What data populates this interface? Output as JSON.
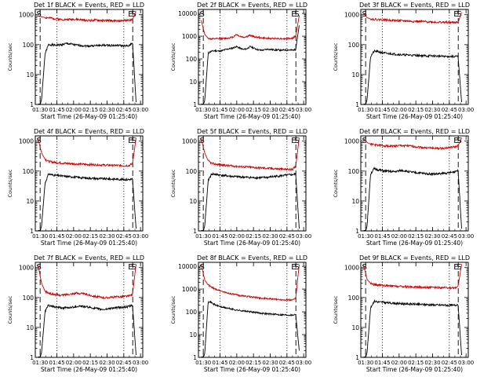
{
  "common": {
    "ylabel": "Counts/sec",
    "xlabel": "Start Time (26-May-09 01:25:40)",
    "x_ticks": [
      "01:30",
      "01:45",
      "02:00",
      "02:15",
      "02:30",
      "02:45",
      "03:00"
    ],
    "y_ticks": [
      "1",
      "10",
      "100",
      "1000"
    ],
    "y_ticks_ext": [
      "1",
      "10",
      "100",
      "1000",
      "10000"
    ],
    "marker_labels": {
      "start": "S",
      "end": "E"
    },
    "colors": {
      "events": "#000000",
      "lld": "#cc0000"
    }
  },
  "chart_data": [
    {
      "type": "line",
      "title": "Det 1f BLACK = Events, RED = LLD",
      "ylim": [
        1,
        1500
      ],
      "y_ticks_key": "y_ticks",
      "x_range": [
        "01:25:40",
        "03:02:00"
      ],
      "dashed_lines": [
        "01:30",
        "02:53"
      ],
      "dotted_lines": [
        "01:45",
        "02:45"
      ],
      "marker_times": {
        "start": "01:29",
        "end": "02:51",
        "end_s": "02:54"
      },
      "series": [
        {
          "key": "events",
          "values": [
            0.5,
            1.5,
            50,
            100,
            98,
            95,
            97,
            100,
            108,
            106,
            100,
            96,
            94,
            92,
            90,
            91,
            92,
            93,
            94,
            95,
            95,
            94,
            93,
            94,
            92,
            90,
            90,
            120,
            1.2
          ]
        },
        {
          "key": "lld",
          "values": [
            900,
            850,
            800,
            780,
            760,
            740,
            700,
            690,
            680,
            700,
            710,
            690,
            680,
            660,
            650,
            640,
            660,
            650,
            640,
            630,
            640,
            630,
            620,
            610,
            630,
            650,
            660,
            700,
            1300
          ]
        }
      ]
    },
    {
      "type": "line",
      "title": "Det 2f BLACK = Events, RED = LLD",
      "ylim": [
        1,
        15000
      ],
      "y_ticks_key": "y_ticks_ext",
      "x_range": [
        "01:25:40",
        "03:02:00"
      ],
      "dashed_lines": [
        "01:30",
        "02:53"
      ],
      "dotted_lines": [
        "01:45",
        "02:45"
      ],
      "marker_times": {
        "start": "01:29",
        "end": "02:51",
        "end_s": "02:54"
      },
      "series": [
        {
          "key": "events",
          "values": [
            0.5,
            1.5,
            180,
            220,
            230,
            220,
            230,
            260,
            280,
            300,
            350,
            300,
            260,
            280,
            350,
            300,
            260,
            240,
            250,
            270,
            260,
            250,
            250,
            240,
            250,
            250,
            240,
            260,
            3000
          ]
        },
        {
          "key": "lld",
          "values": [
            5000,
            1200,
            800,
            750,
            760,
            780,
            790,
            800,
            850,
            900,
            1200,
            1000,
            900,
            950,
            1100,
            950,
            900,
            850,
            820,
            800,
            780,
            800,
            790,
            780,
            770,
            790,
            800,
            1000,
            8000
          ]
        }
      ]
    },
    {
      "type": "line",
      "title": "Det 3f BLACK = Events, RED = LLD",
      "ylim": [
        1,
        1500
      ],
      "y_ticks_key": "y_ticks",
      "x_range": [
        "01:25:40",
        "03:02:00"
      ],
      "dashed_lines": [
        "01:30",
        "02:53"
      ],
      "dotted_lines": [
        "01:45",
        "02:45"
      ],
      "marker_times": {
        "start": "01:29",
        "end": "02:51",
        "end_s": "02:54"
      },
      "series": [
        {
          "key": "events",
          "values": [
            0.5,
            1.5,
            40,
            60,
            58,
            55,
            52,
            50,
            50,
            48,
            47,
            46,
            45,
            45,
            44,
            44,
            43,
            43,
            42,
            42,
            42,
            41,
            41,
            40,
            40,
            40,
            40,
            40,
            1.2
          ]
        },
        {
          "key": "lld",
          "values": [
            1100,
            800,
            720,
            700,
            690,
            680,
            670,
            660,
            650,
            640,
            630,
            620,
            620,
            610,
            600,
            600,
            590,
            590,
            580,
            580,
            570,
            560,
            560,
            560,
            550,
            550,
            550,
            560,
            1200
          ]
        }
      ]
    },
    {
      "type": "line",
      "title": "Det 4f BLACK = Events, RED = LLD",
      "ylim": [
        1,
        1500
      ],
      "y_ticks_key": "y_ticks",
      "x_range": [
        "01:25:40",
        "03:02:00"
      ],
      "dashed_lines": [
        "01:30",
        "02:53"
      ],
      "dotted_lines": [
        "01:45",
        "02:45"
      ],
      "marker_times": {
        "start": "01:29",
        "end": "02:51",
        "end_s": "02:54"
      },
      "series": [
        {
          "key": "events",
          "values": [
            0.5,
            1.5,
            40,
            80,
            75,
            72,
            70,
            68,
            66,
            65,
            64,
            62,
            60,
            60,
            58,
            58,
            57,
            56,
            56,
            55,
            55,
            54,
            54,
            53,
            53,
            52,
            52,
            55,
            1.2
          ]
        },
        {
          "key": "lld",
          "values": [
            1200,
            400,
            250,
            210,
            200,
            195,
            190,
            185,
            180,
            178,
            175,
            172,
            170,
            168,
            166,
            165,
            163,
            162,
            160,
            158,
            157,
            156,
            155,
            154,
            153,
            152,
            152,
            180,
            1300
          ]
        }
      ]
    },
    {
      "type": "line",
      "title": "Det 5f BLACK = Events, RED = LLD",
      "ylim": [
        1,
        1500
      ],
      "y_ticks_key": "y_ticks",
      "x_range": [
        "01:25:40",
        "03:02:00"
      ],
      "dashed_lines": [
        "01:30",
        "02:53"
      ],
      "dotted_lines": [
        "01:45",
        "02:45"
      ],
      "marker_times": {
        "start": "01:29",
        "end": "02:51",
        "end_s": "02:54"
      },
      "series": [
        {
          "key": "events",
          "values": [
            0.5,
            1.5,
            50,
            80,
            78,
            75,
            72,
            70,
            68,
            66,
            65,
            64,
            63,
            62,
            61,
            60,
            60,
            60,
            61,
            62,
            64,
            66,
            68,
            70,
            72,
            74,
            76,
            80,
            1.2
          ]
        },
        {
          "key": "lld",
          "values": [
            1200,
            400,
            220,
            180,
            170,
            165,
            160,
            155,
            150,
            148,
            145,
            142,
            140,
            138,
            135,
            132,
            130,
            128,
            126,
            124,
            122,
            120,
            118,
            116,
            115,
            114,
            113,
            140,
            1300
          ]
        }
      ]
    },
    {
      "type": "line",
      "title": "Det 6f BLACK = Events, RED = LLD",
      "ylim": [
        1,
        1500
      ],
      "y_ticks_key": "y_ticks",
      "x_range": [
        "01:25:40",
        "03:02:00"
      ],
      "dashed_lines": [
        "01:30",
        "02:53"
      ],
      "dotted_lines": [
        "01:45",
        "02:45"
      ],
      "marker_times": {
        "start": "01:29",
        "end": "02:51",
        "end_s": "02:54"
      },
      "series": [
        {
          "key": "events",
          "values": [
            0.5,
            1.5,
            80,
            120,
            110,
            105,
            100,
            98,
            96,
            95,
            100,
            105,
            100,
            95,
            90,
            88,
            86,
            84,
            82,
            80,
            80,
            80,
            82,
            84,
            86,
            90,
            95,
            110,
            1.2
          ]
        },
        {
          "key": "lld",
          "values": [
            1200,
            900,
            800,
            760,
            740,
            720,
            700,
            690,
            680,
            690,
            700,
            710,
            700,
            690,
            670,
            650,
            630,
            610,
            600,
            590,
            580,
            570,
            570,
            580,
            600,
            620,
            640,
            700,
            1300
          ]
        }
      ]
    },
    {
      "type": "line",
      "title": "Det 7f BLACK = Events, RED = LLD",
      "ylim": [
        1,
        1500
      ],
      "y_ticks_key": "y_ticks",
      "x_range": [
        "01:25:40",
        "03:02:00"
      ],
      "dashed_lines": [
        "01:30",
        "02:53"
      ],
      "dotted_lines": [
        "01:45",
        "02:45"
      ],
      "marker_times": {
        "start": "01:29",
        "end": "02:51",
        "end_s": "02:54"
      },
      "series": [
        {
          "key": "events",
          "values": [
            0.5,
            1.5,
            35,
            55,
            50,
            48,
            46,
            45,
            45,
            46,
            48,
            50,
            52,
            50,
            48,
            46,
            44,
            42,
            40,
            40,
            42,
            44,
            45,
            46,
            47,
            48,
            50,
            55,
            1.2
          ]
        },
        {
          "key": "lld",
          "values": [
            1200,
            300,
            160,
            140,
            130,
            125,
            120,
            120,
            125,
            130,
            135,
            140,
            138,
            132,
            125,
            118,
            112,
            106,
            100,
            98,
            100,
            102,
            104,
            106,
            108,
            110,
            112,
            130,
            1300
          ]
        }
      ]
    },
    {
      "type": "line",
      "title": "Det 8f BLACK = Events, RED = LLD",
      "ylim": [
        1,
        15000
      ],
      "y_ticks_key": "y_ticks_ext",
      "x_range": [
        "01:25:40",
        "03:02:00"
      ],
      "dashed_lines": [
        "01:30",
        "02:53"
      ],
      "dotted_lines": [
        "01:45",
        "02:45"
      ],
      "marker_times": {
        "start": "01:29",
        "end": "02:51",
        "end_s": "02:54"
      },
      "series": [
        {
          "key": "events",
          "values": [
            0.5,
            1.5,
            300,
            250,
            200,
            180,
            160,
            150,
            140,
            130,
            120,
            115,
            110,
            105,
            100,
            96,
            92,
            88,
            85,
            82,
            80,
            78,
            76,
            75,
            74,
            73,
            72,
            80,
            2.0
          ]
        },
        {
          "key": "lld",
          "values": [
            12000,
            2500,
            1500,
            1200,
            1000,
            900,
            800,
            700,
            650,
            600,
            560,
            520,
            500,
            480,
            460,
            440,
            420,
            400,
            390,
            380,
            370,
            360,
            350,
            345,
            340,
            335,
            330,
            400,
            12000
          ]
        }
      ]
    },
    {
      "type": "line",
      "title": "Det 9f BLACK = Events, RED = LLD",
      "ylim": [
        1,
        1500
      ],
      "y_ticks_key": "y_ticks",
      "x_range": [
        "01:25:40",
        "03:02:00"
      ],
      "dashed_lines": [
        "01:30",
        "02:53"
      ],
      "dotted_lines": [
        "01:45",
        "02:45"
      ],
      "marker_times": {
        "start": "01:29",
        "end": "02:51",
        "end_s": "02:54"
      },
      "series": [
        {
          "key": "events",
          "values": [
            0.5,
            1.5,
            45,
            75,
            72,
            70,
            68,
            66,
            65,
            64,
            63,
            62,
            62,
            61,
            60,
            60,
            59,
            58,
            58,
            57,
            57,
            56,
            56,
            56,
            55,
            55,
            55,
            60,
            1.2
          ]
        },
        {
          "key": "lld",
          "values": [
            1200,
            400,
            300,
            270,
            260,
            255,
            250,
            245,
            240,
            238,
            235,
            232,
            230,
            228,
            226,
            224,
            222,
            220,
            218,
            216,
            215,
            214,
            213,
            212,
            212,
            211,
            210,
            240,
            1300
          ]
        }
      ]
    }
  ]
}
